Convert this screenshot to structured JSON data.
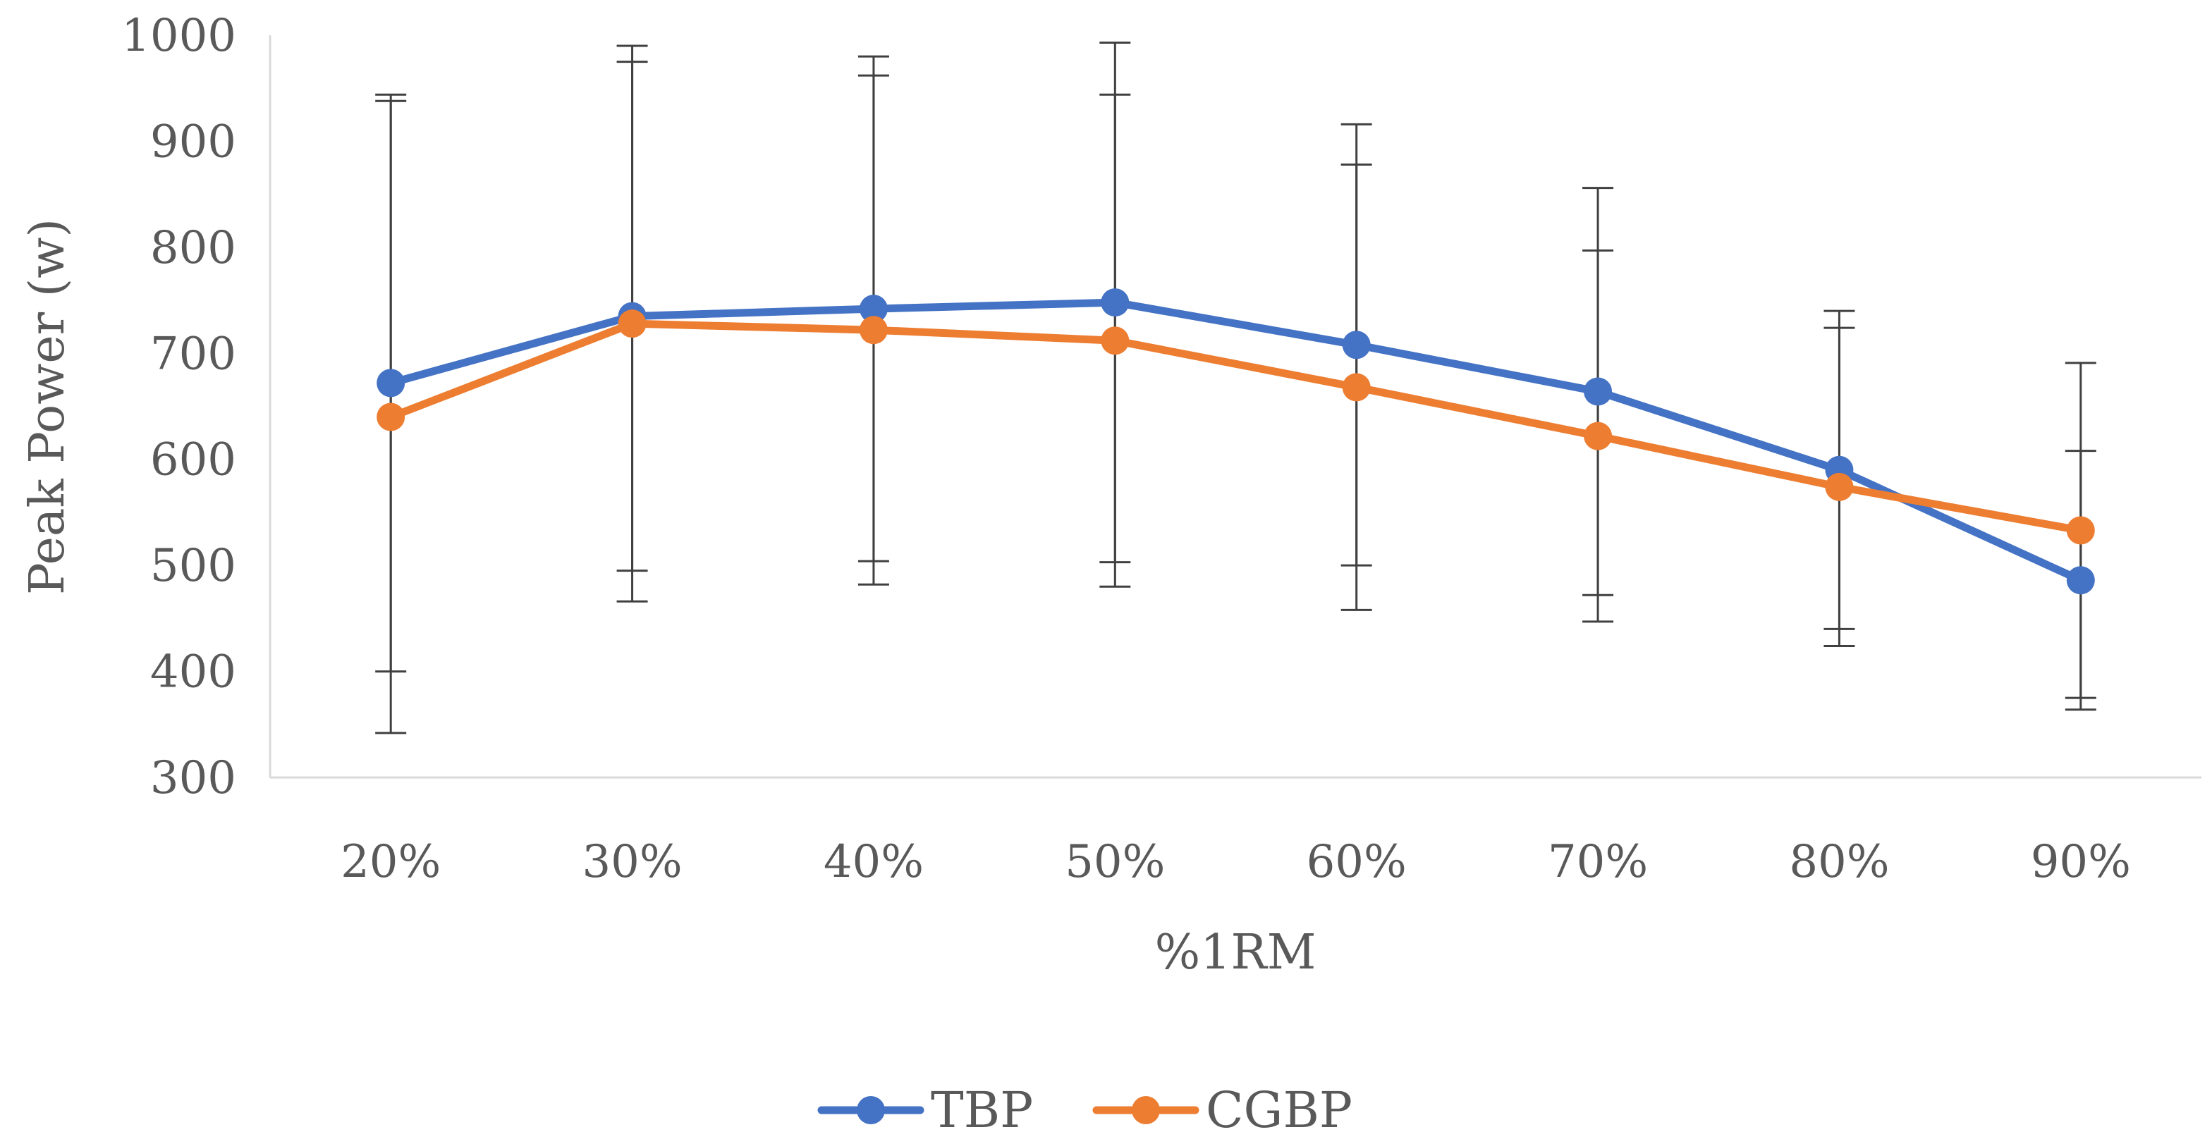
{
  "chart_data": {
    "type": "line",
    "title": "",
    "xlabel": "%1RM",
    "ylabel": "Peak Power (w)",
    "ylim": [
      300,
      1000
    ],
    "yticks": [
      300,
      400,
      500,
      600,
      700,
      800,
      900,
      1000
    ],
    "categories": [
      "20%",
      "30%",
      "40%",
      "50%",
      "60%",
      "70%",
      "80%",
      "90%"
    ],
    "grid": false,
    "legend_position": "bottom",
    "series": [
      {
        "name": "TBP",
        "color": "#4472C4",
        "values": [
          672,
          735,
          742,
          748,
          708,
          664,
          590,
          486
        ],
        "error": [
          272,
          240,
          238,
          245,
          208,
          192,
          150,
          122
        ]
      },
      {
        "name": "CGBP",
        "color": "#ED7D31",
        "values": [
          640,
          728,
          722,
          712,
          668,
          622,
          574,
          533
        ],
        "error": [
          298,
          262,
          240,
          232,
          210,
          175,
          150,
          158
        ]
      }
    ]
  }
}
